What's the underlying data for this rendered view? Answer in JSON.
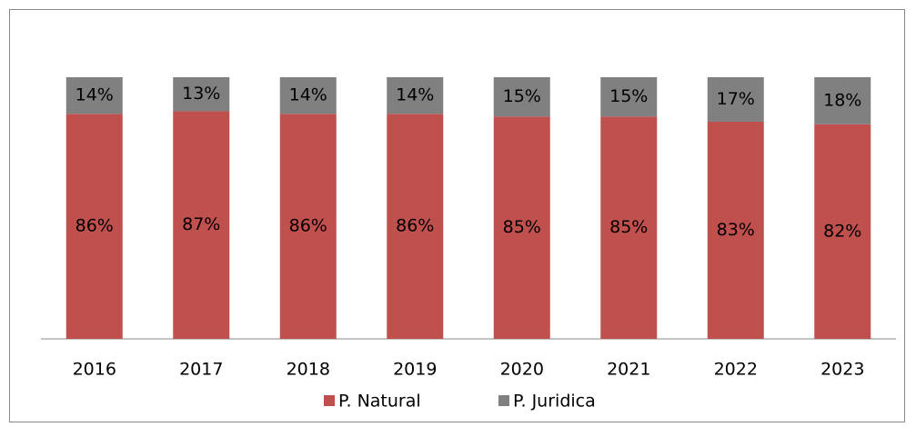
{
  "chart_data": {
    "type": "stacked_bar",
    "categories": [
      "2016",
      "2017",
      "2018",
      "2019",
      "2020",
      "2021",
      "2022",
      "2023"
    ],
    "series": [
      {
        "name": "P. Natural",
        "color": "#c0504d",
        "values": [
          86,
          87,
          86,
          86,
          85,
          85,
          83,
          82
        ],
        "value_labels": [
          "86%",
          "87%",
          "86%",
          "86%",
          "85%",
          "85%",
          "83%",
          "82%"
        ]
      },
      {
        "name": "P. Juridica",
        "color": "#808080",
        "values": [
          14,
          13,
          14,
          14,
          15,
          15,
          17,
          18
        ],
        "value_labels": [
          "14%",
          "13%",
          "14%",
          "14%",
          "15%",
          "15%",
          "17%",
          "18%"
        ]
      }
    ],
    "ylim": [
      0,
      100
    ],
    "legend": "bottom"
  }
}
